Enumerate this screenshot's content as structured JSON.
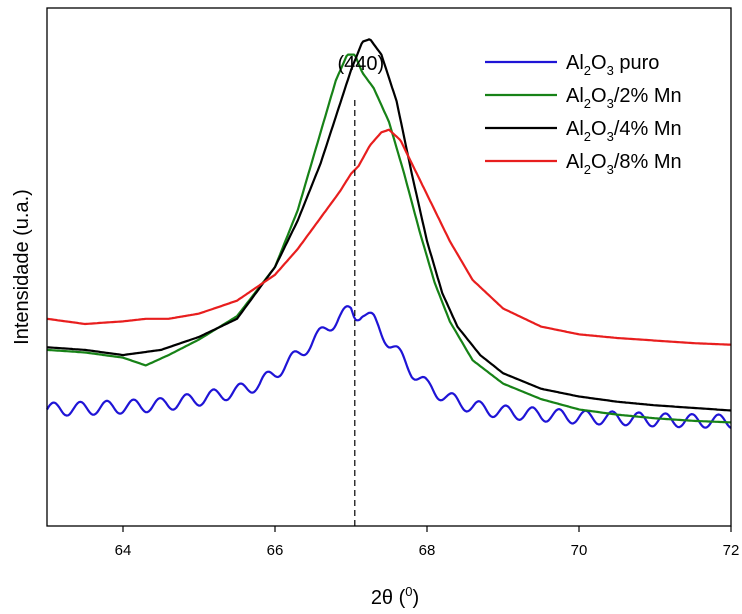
{
  "chart_data": {
    "type": "line",
    "xlabel": "2θ (",
    "xlabel_sup": "0",
    "xlabel_end": ")",
    "ylabel": "Intensidade (u.a.)",
    "xlim": [
      63,
      72
    ],
    "ylim": [
      0,
      100
    ],
    "xticks": [
      64,
      66,
      68,
      70,
      72
    ],
    "y_tick_labels": false,
    "grid": false,
    "legend_position": "top-right",
    "annotation": {
      "text": "(440)",
      "x": 67.05,
      "style": "dashed vertical line"
    },
    "series": [
      {
        "name_parts": [
          "Al",
          "2",
          "O",
          "3",
          " puro"
        ],
        "color": "#1f14d6",
        "oscillation": {
          "period": 0.35,
          "amplitude": 1.3
        },
        "x": [
          63.0,
          63.5,
          64.0,
          64.5,
          65.0,
          65.5,
          65.8,
          66.0,
          66.3,
          66.6,
          66.85,
          67.0,
          67.05,
          67.15,
          67.3,
          67.5,
          67.8,
          68.0,
          68.3,
          68.6,
          69.0,
          69.5,
          70.0,
          70.5,
          71.0,
          71.5,
          72.0
        ],
        "y": [
          22.5,
          22.7,
          23.0,
          23.4,
          24.5,
          26.0,
          27.5,
          29.5,
          33.0,
          37.0,
          40.5,
          41.5,
          40.5,
          41.5,
          39.5,
          35.5,
          30.0,
          27.0,
          24.5,
          23.0,
          22.0,
          21.5,
          21.0,
          20.8,
          20.5,
          20.3,
          20.2
        ]
      },
      {
        "name_parts": [
          "Al",
          "2",
          "O",
          "3",
          "/2% Mn"
        ],
        "color": "#178217",
        "x": [
          63.0,
          63.5,
          64.0,
          64.3,
          64.6,
          65.0,
          65.5,
          66.0,
          66.3,
          66.6,
          66.8,
          66.95,
          67.05,
          67.15,
          67.3,
          67.5,
          67.7,
          67.9,
          68.1,
          68.3,
          68.6,
          69.0,
          69.5,
          70.0,
          70.5,
          71.0,
          71.5,
          72.0
        ],
        "y": [
          34.0,
          33.5,
          32.5,
          31.0,
          33.0,
          36.0,
          40.5,
          50.0,
          61.0,
          76.0,
          86.0,
          91.0,
          91.0,
          87.5,
          84.5,
          78.0,
          68.0,
          57.0,
          47.0,
          39.5,
          32.0,
          27.5,
          24.5,
          22.5,
          21.5,
          20.8,
          20.3,
          20.0
        ]
      },
      {
        "name_parts": [
          "Al",
          "2",
          "O",
          "3",
          "/4% Mn"
        ],
        "color": "#000000",
        "x": [
          63.0,
          63.5,
          64.0,
          64.5,
          65.0,
          65.5,
          66.0,
          66.3,
          66.6,
          66.8,
          67.0,
          67.15,
          67.25,
          67.4,
          67.6,
          67.8,
          68.0,
          68.2,
          68.4,
          68.7,
          69.0,
          69.5,
          70.0,
          70.5,
          71.0,
          71.5,
          72.0
        ],
        "y": [
          34.5,
          34.0,
          33.0,
          34.0,
          36.5,
          40.0,
          50.0,
          59.0,
          70.0,
          79.0,
          88.0,
          93.5,
          94.0,
          91.0,
          82.0,
          68.0,
          55.0,
          45.0,
          38.5,
          33.0,
          29.5,
          26.5,
          25.0,
          24.0,
          23.3,
          22.8,
          22.3
        ]
      },
      {
        "name_parts": [
          "Al",
          "2",
          "O",
          "3",
          "/8% Mn"
        ],
        "color": "#e81e1e",
        "x": [
          63.0,
          63.5,
          64.0,
          64.3,
          64.6,
          65.0,
          65.5,
          66.0,
          66.3,
          66.6,
          66.85,
          67.0,
          67.1,
          67.25,
          67.4,
          67.5,
          67.65,
          67.8,
          68.0,
          68.3,
          68.6,
          69.0,
          69.5,
          70.0,
          70.5,
          71.0,
          71.5,
          72.0
        ],
        "y": [
          40.0,
          39.0,
          39.5,
          40.0,
          40.0,
          41.0,
          43.5,
          48.5,
          53.5,
          59.5,
          64.5,
          68.0,
          69.5,
          73.5,
          76.0,
          76.5,
          74.5,
          70.0,
          64.0,
          55.0,
          47.5,
          42.0,
          38.5,
          37.0,
          36.3,
          35.8,
          35.3,
          35.0
        ]
      }
    ]
  }
}
